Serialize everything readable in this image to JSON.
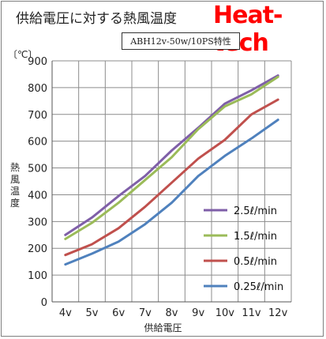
{
  "chart_data": {
    "type": "line",
    "title": "供給電圧に対する熱風温度",
    "brand": "Heat-tech",
    "subtitle": "ABH12v-50w/10PS特性",
    "unit_label": "〔℃〕",
    "ylabel": "熱風温度",
    "xlabel": "供給電圧",
    "categories": [
      "4v",
      "5v",
      "6v",
      "7v",
      "8v",
      "9v",
      "10v",
      "11v",
      "12v"
    ],
    "ylim": [
      0,
      900
    ],
    "yticks": [
      0,
      100,
      200,
      300,
      400,
      500,
      600,
      700,
      800,
      900
    ],
    "grid": true,
    "legend_position": "bottom-right",
    "series": [
      {
        "name": "2.5ℓ/min",
        "color": "#7f5fa8",
        "values": [
          250,
          315,
          395,
          470,
          565,
          650,
          740,
          790,
          845
        ]
      },
      {
        "name": "1.5ℓ/min",
        "color": "#9bbb59",
        "values": [
          235,
          295,
          370,
          455,
          540,
          645,
          730,
          775,
          840
        ]
      },
      {
        "name": "0.5ℓ/min",
        "color": "#c0504d",
        "values": [
          175,
          215,
          275,
          355,
          445,
          535,
          605,
          700,
          755
        ]
      },
      {
        "name": "0.25ℓ/min",
        "color": "#4f81bd",
        "values": [
          140,
          180,
          225,
          290,
          370,
          470,
          545,
          610,
          680
        ]
      }
    ]
  }
}
